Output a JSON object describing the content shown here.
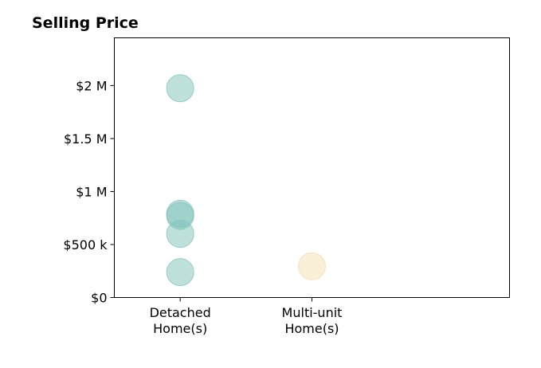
{
  "chart_data": {
    "type": "scatter",
    "title": "Selling Price",
    "xlabel": "",
    "ylabel": "",
    "categories": [
      {
        "line1": "Detached",
        "line2": "Home(s)"
      },
      {
        "line1": "Multi-unit",
        "line2": "Home(s)"
      }
    ],
    "xlim": [
      -0.5,
      2.5
    ],
    "ylim": [
      0,
      2450000
    ],
    "yticks": [
      {
        "value": 0,
        "label": "$0"
      },
      {
        "value": 500000,
        "label": "$500 k"
      },
      {
        "value": 1000000,
        "label": "$1 M"
      },
      {
        "value": 1500000,
        "label": "$1.5 M"
      },
      {
        "value": 2000000,
        "label": "$2 M"
      }
    ],
    "series": [
      {
        "category_index": 0,
        "color": "#7fc4ba",
        "values": [
          1975000,
          790000,
          770000,
          600000,
          240000
        ]
      },
      {
        "category_index": 1,
        "color": "#f5dfb0",
        "values": [
          295000
        ]
      }
    ],
    "marker_opacity": 0.5,
    "grid": false,
    "legend": "none"
  }
}
